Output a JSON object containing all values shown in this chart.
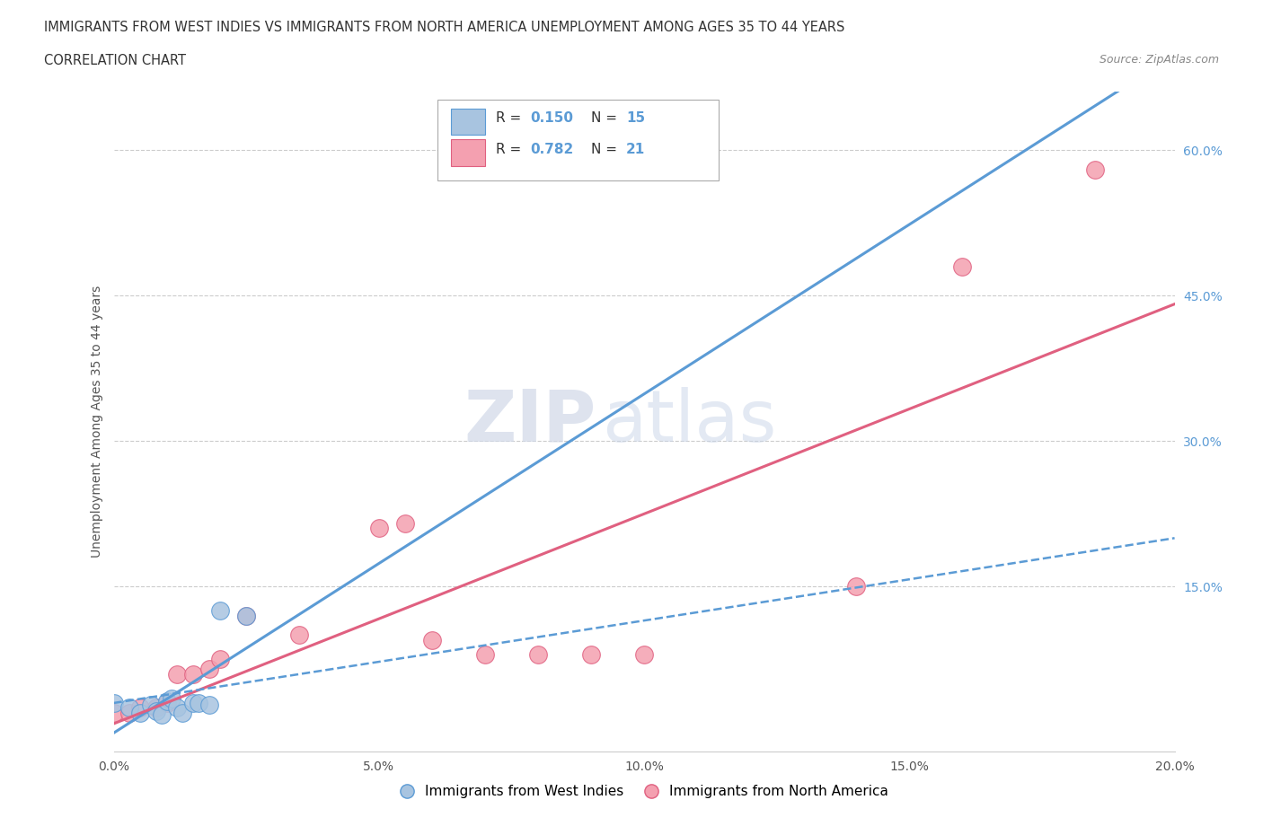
{
  "title_line1": "IMMIGRANTS FROM WEST INDIES VS IMMIGRANTS FROM NORTH AMERICA UNEMPLOYMENT AMONG AGES 35 TO 44 YEARS",
  "title_line2": "CORRELATION CHART",
  "source_text": "Source: ZipAtlas.com",
  "ylabel": "Unemployment Among Ages 35 to 44 years",
  "xlim": [
    0.0,
    0.2
  ],
  "ylim": [
    -0.02,
    0.66
  ],
  "xtick_labels": [
    "0.0%",
    "5.0%",
    "10.0%",
    "15.0%",
    "20.0%"
  ],
  "xtick_values": [
    0.0,
    0.05,
    0.1,
    0.15,
    0.2
  ],
  "ytick_labels": [
    "15.0%",
    "30.0%",
    "45.0%",
    "60.0%"
  ],
  "ytick_values": [
    0.15,
    0.3,
    0.45,
    0.6
  ],
  "grid_color": "#cccccc",
  "background_color": "#ffffff",
  "watermark_ZIP": "ZIP",
  "watermark_atlas": "atlas",
  "legend_R1": "R = 0.150",
  "legend_N1": "N = 15",
  "legend_R2": "R = 0.782",
  "legend_N2": "N = 21",
  "series1_label": "Immigrants from West Indies",
  "series2_label": "Immigrants from North America",
  "color1": "#a8c4e0",
  "color2": "#f4a0b0",
  "color1_dark": "#5b9bd5",
  "color2_dark": "#e06080",
  "west_indies_x": [
    0.0,
    0.003,
    0.005,
    0.007,
    0.008,
    0.009,
    0.01,
    0.011,
    0.012,
    0.013,
    0.015,
    0.016,
    0.018,
    0.02,
    0.025
  ],
  "west_indies_y": [
    0.03,
    0.025,
    0.02,
    0.028,
    0.022,
    0.018,
    0.032,
    0.035,
    0.025,
    0.02,
    0.03,
    0.03,
    0.028,
    0.125,
    0.12
  ],
  "north_america_x": [
    0.0,
    0.003,
    0.005,
    0.008,
    0.01,
    0.012,
    0.015,
    0.018,
    0.02,
    0.025,
    0.035,
    0.05,
    0.055,
    0.06,
    0.07,
    0.08,
    0.09,
    0.1,
    0.14,
    0.16,
    0.185
  ],
  "north_america_y": [
    0.02,
    0.02,
    0.025,
    0.025,
    0.03,
    0.06,
    0.06,
    0.065,
    0.075,
    0.12,
    0.1,
    0.21,
    0.215,
    0.095,
    0.08,
    0.08,
    0.08,
    0.08,
    0.15,
    0.48,
    0.58
  ]
}
